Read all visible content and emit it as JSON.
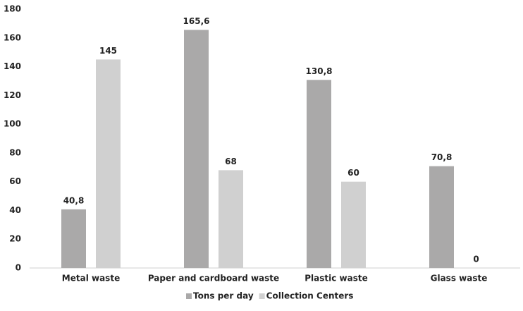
{
  "chart_data": {
    "type": "bar",
    "categories": [
      "Metal waste",
      "Paper and cardboard waste",
      "Plastic waste",
      "Glass waste"
    ],
    "series": [
      {
        "name": "Tons per day",
        "color": "#aaa9a9",
        "values": [
          40.8,
          165.6,
          130.8,
          70.8
        ],
        "value_labels": [
          "40,8",
          "165,6",
          "130,8",
          "70,8"
        ]
      },
      {
        "name": "Collection Centers",
        "color": "#d0d0d0",
        "values": [
          145,
          68,
          60,
          0
        ]
      }
    ],
    "ylim": [
      0,
      180
    ],
    "yticks": [
      0,
      20,
      40,
      60,
      80,
      100,
      120,
      140,
      160,
      180
    ],
    "grid": false,
    "legend": "bottom"
  }
}
